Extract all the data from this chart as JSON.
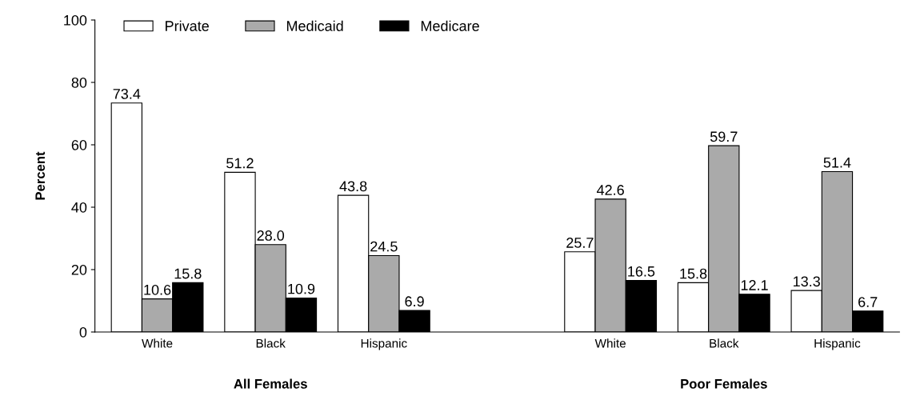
{
  "chart_data": {
    "type": "bar",
    "ylabel": "Percent",
    "categories": [
      "White",
      "Black",
      "Hispanic",
      null,
      "White",
      "Black",
      "Hispanic"
    ],
    "series": [
      {
        "name": "Private",
        "color": "#ffffff",
        "values": [
          73.4,
          51.2,
          43.8,
          null,
          25.7,
          15.8,
          13.3
        ]
      },
      {
        "name": "Medicaid",
        "color": "#aaaaaa",
        "values": [
          10.6,
          28.0,
          24.5,
          null,
          42.6,
          59.7,
          51.4
        ]
      },
      {
        "name": "Medicare",
        "color": "#000000",
        "values": [
          15.8,
          10.9,
          6.9,
          null,
          16.5,
          12.1,
          6.7
        ]
      }
    ],
    "value_labels": [
      [
        "73.4",
        "51.2",
        "43.8",
        null,
        "25.7",
        "15.8",
        "13.3"
      ],
      [
        "10.6",
        "28.0",
        "24.5",
        null,
        "42.6",
        "59.7",
        "51.4"
      ],
      [
        "15.8",
        "10.9",
        "6.9",
        null,
        "16.5",
        "12.1",
        "6.7"
      ]
    ],
    "annotations": [
      "All Females",
      "Poor Females"
    ],
    "ylim": [
      0,
      100
    ],
    "yticks": [
      0,
      20,
      40,
      60,
      80,
      100
    ],
    "grid": false,
    "legend": "top left"
  }
}
